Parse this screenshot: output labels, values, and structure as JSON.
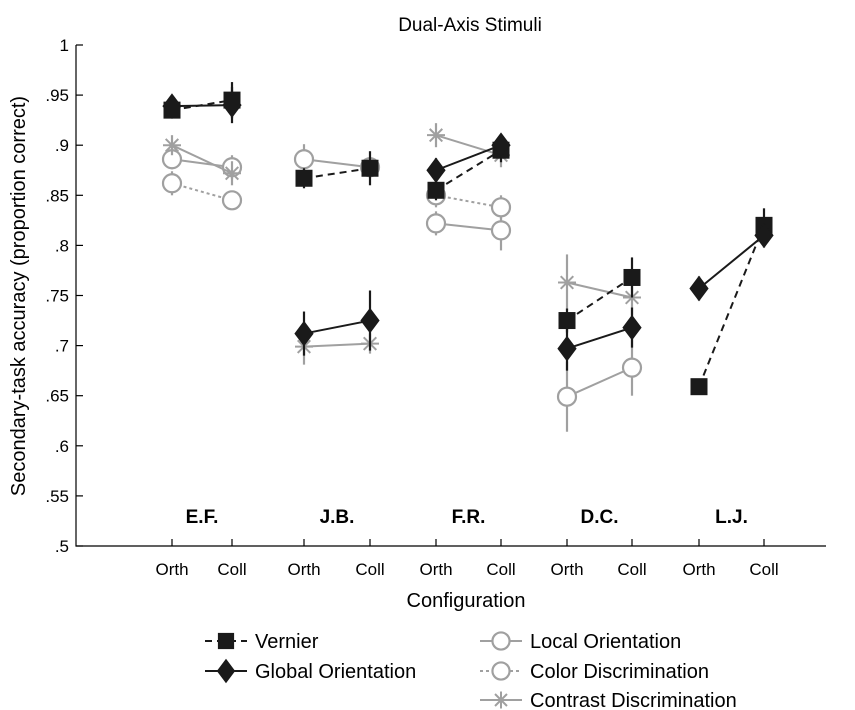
{
  "chart_data": {
    "type": "line",
    "title": "Dual-Axis Stimuli",
    "xlabel": "Configuration",
    "ylabel": "Secondary-task accuracy (proportion correct)",
    "ylim": [
      0.5,
      1
    ],
    "yticks": [
      ".5",
      ".55",
      ".6",
      ".65",
      ".7",
      ".75",
      ".8",
      ".85",
      ".9",
      ".95",
      "1"
    ],
    "grid": false,
    "legend_position": "bottom",
    "colors": {
      "black": "#1a1a1a",
      "gray": "#a0a0a0"
    },
    "groups": [
      {
        "label": "E.F.",
        "conditions": [
          "Orth",
          "Coll"
        ]
      },
      {
        "label": "J.B.",
        "conditions": [
          "Orth",
          "Coll"
        ]
      },
      {
        "label": "F.R.",
        "conditions": [
          "Orth",
          "Coll"
        ]
      },
      {
        "label": "D.C.",
        "conditions": [
          "Orth",
          "Coll"
        ]
      },
      {
        "label": "L.J.",
        "conditions": [
          "Orth",
          "Coll"
        ]
      }
    ],
    "series": [
      {
        "name": "Vernier",
        "marker": "square",
        "color": "black",
        "dash": "dashed",
        "values": [
          [
            0.935,
            0.945
          ],
          [
            0.867,
            0.877
          ],
          [
            0.855,
            0.895
          ],
          [
            0.725,
            0.768
          ],
          [
            0.659,
            0.82
          ]
        ],
        "errors": [
          [
            0.006,
            0.018
          ],
          [
            0.01,
            0.017
          ],
          [
            0.01,
            0.012
          ],
          [
            0.012,
            0.02
          ],
          [
            0.008,
            0.017
          ]
        ]
      },
      {
        "name": "Global Orientation",
        "marker": "diamond",
        "color": "black",
        "dash": "solid",
        "values": [
          [
            0.939,
            0.94
          ],
          [
            0.712,
            0.725
          ],
          [
            0.875,
            0.9
          ],
          [
            0.697,
            0.718
          ],
          [
            0.757,
            0.81
          ]
        ],
        "errors": [
          [
            0.008,
            0.018
          ],
          [
            0.022,
            0.03
          ],
          [
            0.012,
            0.01
          ],
          [
            0.022,
            0.02
          ],
          [
            0.012,
            0.012
          ]
        ]
      },
      {
        "name": "Local Orientation",
        "marker": "circle",
        "color": "gray",
        "dash": "solid",
        "values": [
          [
            0.886,
            0.878
          ],
          [
            0.886,
            0.878
          ],
          [
            0.822,
            0.815
          ],
          [
            0.649,
            0.678
          ],
          null
        ],
        "errors": [
          [
            0.01,
            0.012
          ],
          [
            0.015,
            0.01
          ],
          [
            0.012,
            0.02
          ],
          [
            0.035,
            0.028
          ],
          null
        ]
      },
      {
        "name": "Color Discrimination",
        "marker": "circle",
        "color": "gray",
        "dash": "dotted",
        "values": [
          [
            0.862,
            0.845
          ],
          null,
          [
            0.85,
            0.838
          ],
          null,
          null
        ],
        "errors": [
          [
            0.012,
            0.008
          ],
          null,
          [
            0.012,
            0.012
          ],
          null,
          null
        ]
      },
      {
        "name": "Contrast Discrimination",
        "marker": "asterisk",
        "color": "gray",
        "dash": "solid",
        "values": [
          [
            0.9,
            0.872
          ],
          [
            0.699,
            0.702
          ],
          [
            0.91,
            0.89
          ],
          [
            0.763,
            0.748
          ],
          null
        ],
        "errors": [
          [
            0.01,
            0.012
          ],
          [
            0.018,
            0.01
          ],
          [
            0.012,
            0.012
          ],
          [
            0.028,
            0.018
          ],
          null
        ]
      }
    ]
  }
}
